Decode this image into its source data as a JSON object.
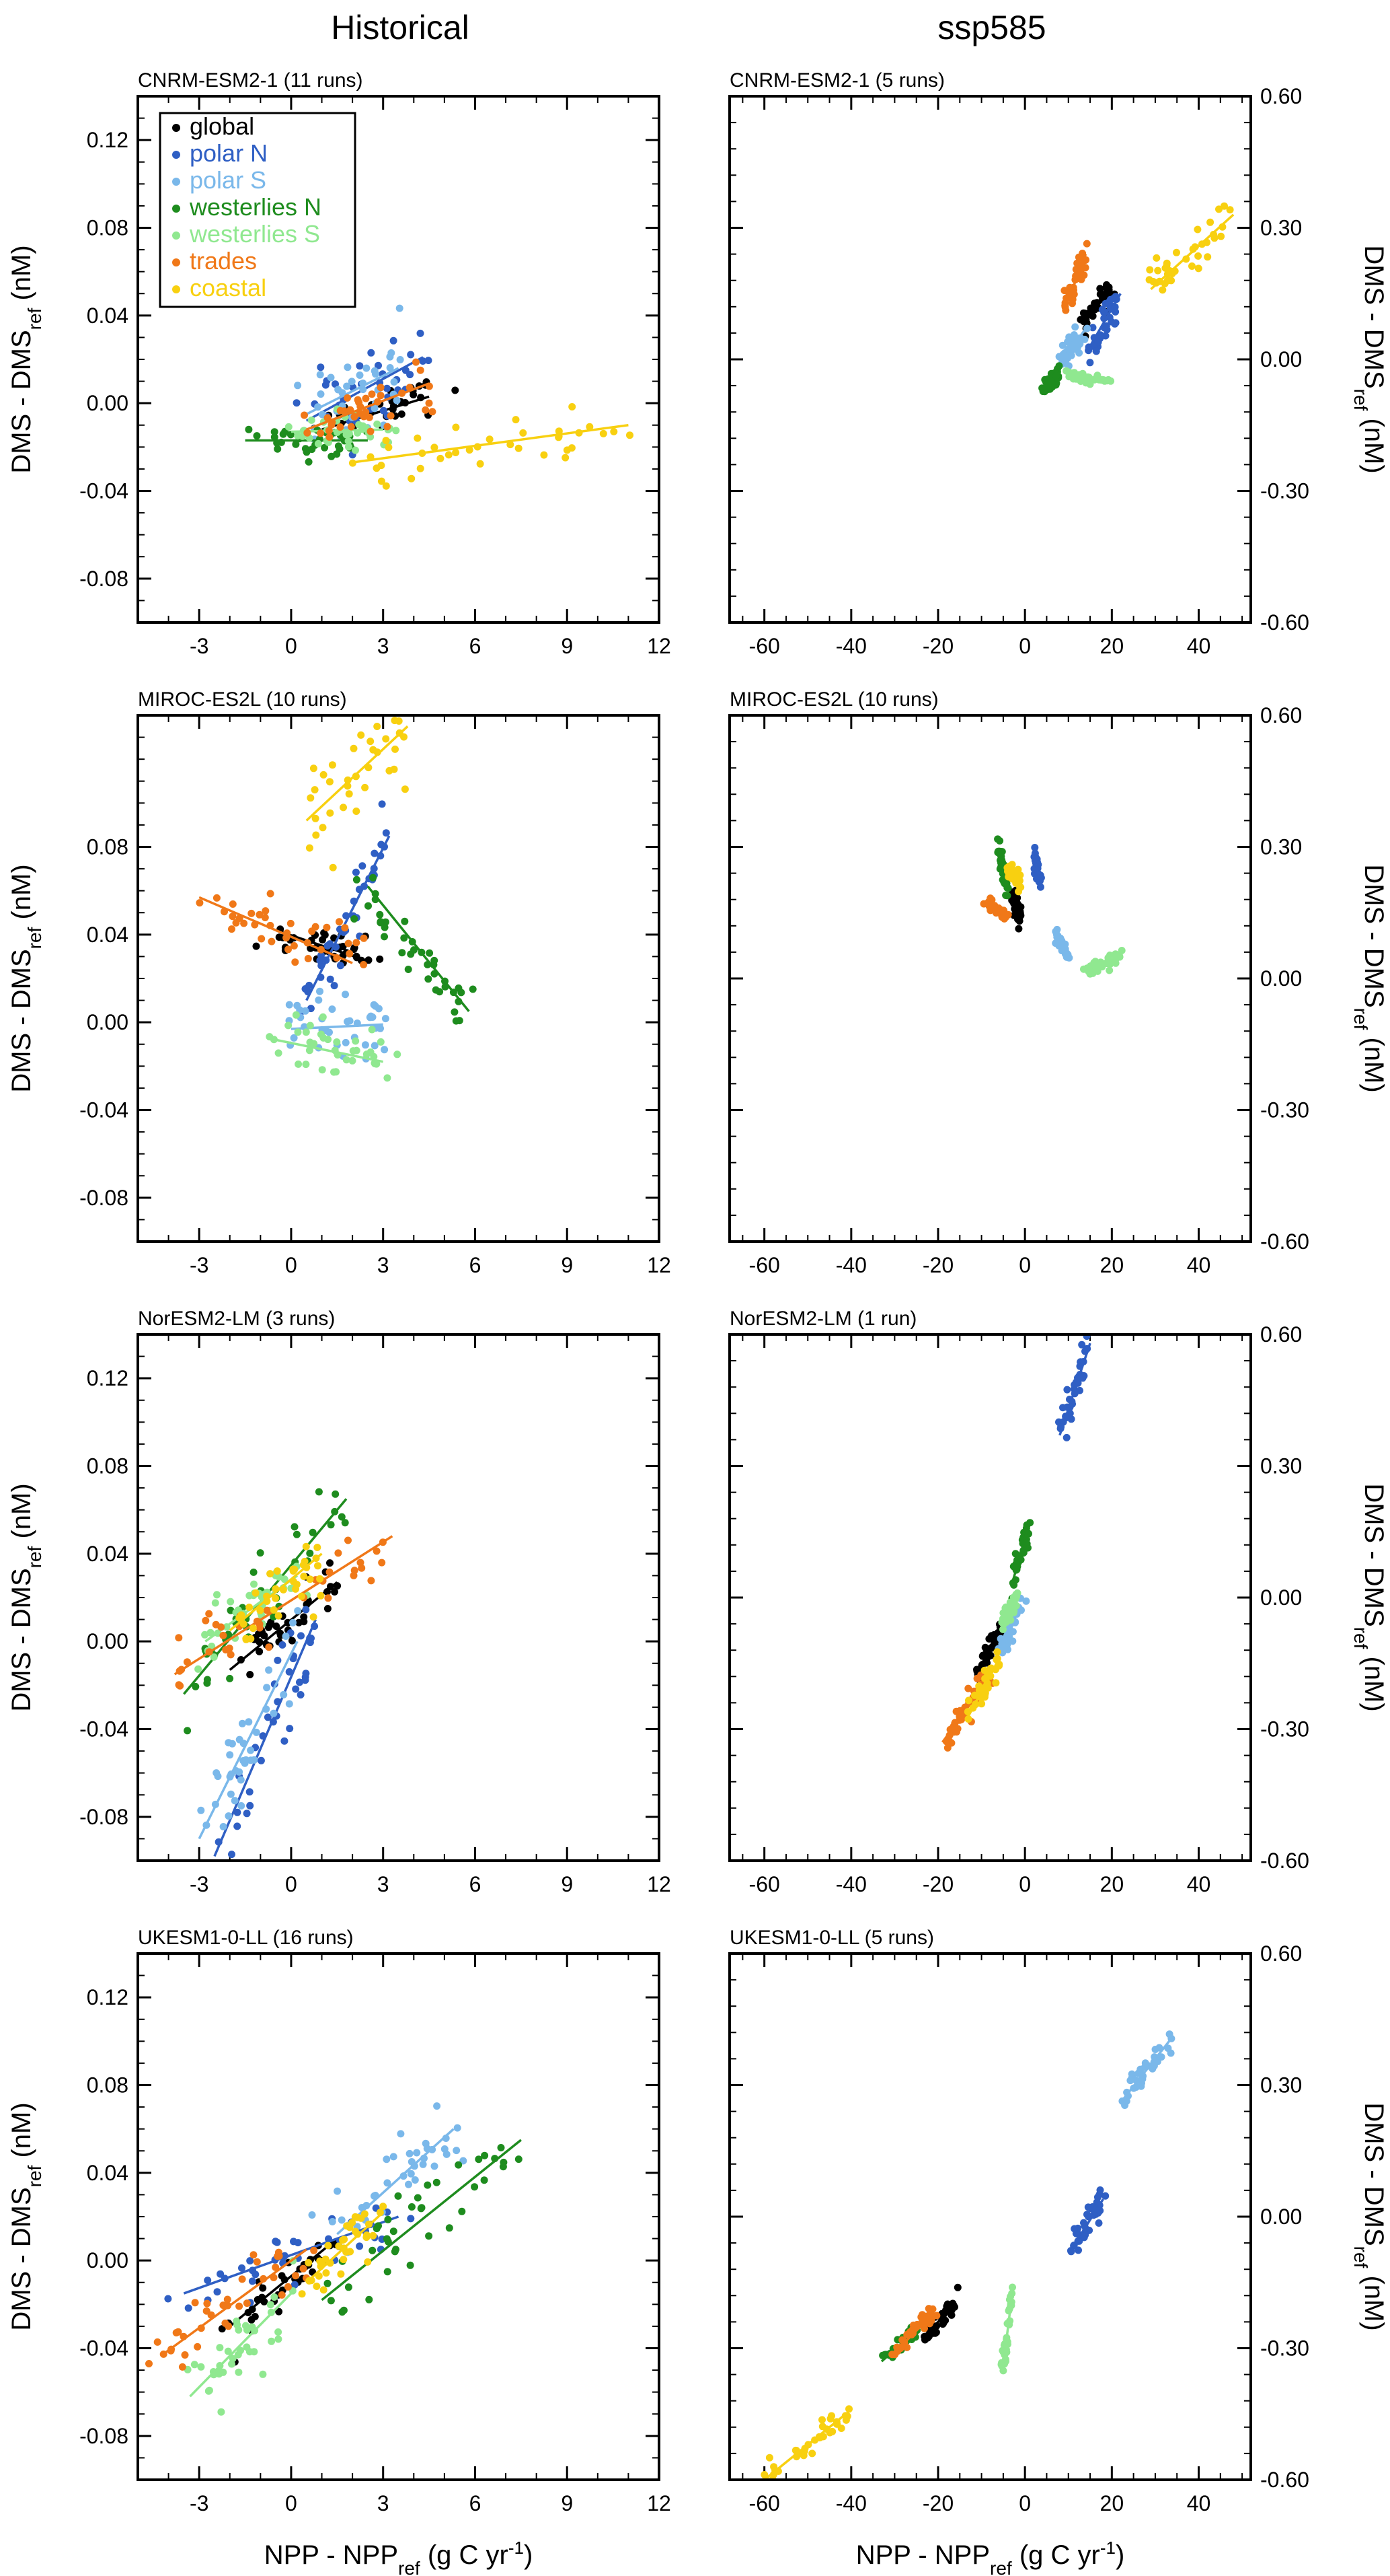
{
  "column_titles": [
    "Historical",
    "ssp585"
  ],
  "axes": {
    "ylabel": {
      "main": "DMS - DMS",
      "sub": "ref",
      "unit": " (nM)"
    },
    "xlabel": {
      "main": "NPP - NPP",
      "sub": "ref",
      "unit": " (g C yr",
      "sup": "-1",
      "close": ")"
    }
  },
  "legend": [
    {
      "key": "global",
      "label": "global"
    },
    {
      "key": "polarN",
      "label": "polar N"
    },
    {
      "key": "polarS",
      "label": "polar S"
    },
    {
      "key": "westN",
      "label": "westerlies N"
    },
    {
      "key": "westS",
      "label": "westerlies S"
    },
    {
      "key": "trades",
      "label": "trades"
    },
    {
      "key": "coastal",
      "label": "coastal"
    }
  ],
  "colors": {
    "global": "#000000",
    "polarN": "#2f5fc4",
    "polarS": "#7ab8ea",
    "westN": "#1e8c1e",
    "westS": "#90e890",
    "trades": "#f07818",
    "coastal": "#f8d010"
  },
  "chart_data": [
    {
      "type": "scatter",
      "title": "CNRM-ESM2-1 (11 runs)",
      "column": "Historical",
      "xlim": [
        -5,
        12
      ],
      "ylim": [
        -0.1,
        0.14
      ],
      "xticks": [
        "-3",
        "0",
        "3",
        "6",
        "9",
        "12"
      ],
      "yticks": [
        "-0.08",
        "-0.04",
        "0.00",
        "0.04",
        "0.08",
        "0.12"
      ],
      "series": [
        {
          "key": "global",
          "x": [
            1,
            4.5
          ],
          "y": [
            -0.012,
            0.003
          ],
          "spread": [
            1.3,
            0.005
          ]
        },
        {
          "key": "polarN",
          "x": [
            0.5,
            4.3
          ],
          "y": [
            -0.008,
            0.021
          ],
          "spread": [
            1.3,
            0.014
          ]
        },
        {
          "key": "polarS",
          "x": [
            0.5,
            3.5
          ],
          "y": [
            -0.005,
            0.016
          ],
          "spread": [
            1.2,
            0.013
          ]
        },
        {
          "key": "westN",
          "x": [
            -1.5,
            2.5
          ],
          "y": [
            -0.017,
            -0.017
          ],
          "spread": [
            1.4,
            0.006
          ]
        },
        {
          "key": "westS",
          "x": [
            0,
            3
          ],
          "y": [
            -0.013,
            -0.012
          ],
          "spread": [
            1.2,
            0.006
          ]
        },
        {
          "key": "trades",
          "x": [
            0.5,
            4.5
          ],
          "y": [
            -0.012,
            0.009
          ],
          "spread": [
            1.3,
            0.008
          ]
        },
        {
          "key": "coastal",
          "x": [
            2,
            11
          ],
          "y": [
            -0.027,
            -0.01
          ],
          "spread": [
            3.0,
            0.008
          ]
        }
      ]
    },
    {
      "type": "scatter",
      "title": "CNRM-ESM2-1 (5 runs)",
      "column": "ssp585",
      "xlim": [
        -68,
        52
      ],
      "ylim": [
        -0.6,
        0.6
      ],
      "xticks": [
        "-60",
        "-40",
        "-20",
        "0",
        "20",
        "40"
      ],
      "yticks": [
        "-0.60",
        "-0.30",
        "0.00",
        "0.30",
        "0.60"
      ],
      "series": [
        {
          "key": "global",
          "x": [
            13,
            20
          ],
          "y": [
            0.08,
            0.16
          ],
          "spread": [
            1.8,
            0.02
          ]
        },
        {
          "key": "polarN",
          "x": [
            15,
            22
          ],
          "y": [
            0.03,
            0.15
          ],
          "spread": [
            2.0,
            0.03
          ]
        },
        {
          "key": "polarS",
          "x": [
            8,
            14
          ],
          "y": [
            -0.01,
            0.07
          ],
          "spread": [
            1.5,
            0.02
          ]
        },
        {
          "key": "westN",
          "x": [
            4,
            8
          ],
          "y": [
            -0.07,
            -0.03
          ],
          "spread": [
            1.0,
            0.015
          ]
        },
        {
          "key": "westS",
          "x": [
            10,
            19
          ],
          "y": [
            -0.04,
            -0.05
          ],
          "spread": [
            2.0,
            0.01
          ]
        },
        {
          "key": "trades",
          "x": [
            9,
            14
          ],
          "y": [
            0.11,
            0.24
          ],
          "spread": [
            1.5,
            0.03
          ]
        },
        {
          "key": "coastal",
          "x": [
            29,
            48
          ],
          "y": [
            0.16,
            0.33
          ],
          "spread": [
            4.0,
            0.03
          ]
        }
      ]
    },
    {
      "type": "scatter",
      "title": "MIROC-ES2L (10 runs)",
      "column": "Historical",
      "xlim": [
        -5,
        12
      ],
      "ylim": [
        -0.1,
        0.14
      ],
      "xticks": [
        "-3",
        "0",
        "3",
        "6",
        "9",
        "12"
      ],
      "yticks": [
        "-0.08",
        "-0.04",
        "0.00",
        "0.04",
        "0.08"
      ],
      "series": [
        {
          "key": "global",
          "x": [
            -0.5,
            2.5
          ],
          "y": [
            0.042,
            0.028
          ],
          "spread": [
            0.8,
            0.006
          ]
        },
        {
          "key": "polarN",
          "x": [
            0.5,
            3.2
          ],
          "y": [
            0.01,
            0.085
          ],
          "spread": [
            0.8,
            0.01
          ]
        },
        {
          "key": "polarS",
          "x": [
            0,
            3
          ],
          "y": [
            -0.003,
            -0.001
          ],
          "spread": [
            1.0,
            0.01
          ]
        },
        {
          "key": "westN",
          "x": [
            2.5,
            5.8
          ],
          "y": [
            0.062,
            0.005
          ],
          "spread": [
            0.9,
            0.01
          ]
        },
        {
          "key": "westS",
          "x": [
            -0.5,
            3
          ],
          "y": [
            -0.008,
            -0.018
          ],
          "spread": [
            1.2,
            0.01
          ]
        },
        {
          "key": "trades",
          "x": [
            -3,
            2
          ],
          "y": [
            0.057,
            0.027
          ],
          "spread": [
            1.3,
            0.008
          ]
        },
        {
          "key": "coastal",
          "x": [
            0.5,
            3.8
          ],
          "y": [
            0.092,
            0.135
          ],
          "spread": [
            0.8,
            0.015
          ]
        }
      ]
    },
    {
      "type": "scatter",
      "title": "MIROC-ES2L (10 runs)",
      "column": "ssp585",
      "xlim": [
        -68,
        52
      ],
      "ylim": [
        -0.6,
        0.6
      ],
      "xticks": [
        "-60",
        "-40",
        "-20",
        "0",
        "20",
        "40"
      ],
      "yticks": [
        "-0.60",
        "-0.30",
        "0.00",
        "0.30",
        "0.60"
      ],
      "series": [
        {
          "key": "global",
          "x": [
            -3,
            -1
          ],
          "y": [
            0.19,
            0.14
          ],
          "spread": [
            0.6,
            0.015
          ]
        },
        {
          "key": "polarN",
          "x": [
            2,
            3.5
          ],
          "y": [
            0.28,
            0.22
          ],
          "spread": [
            0.6,
            0.02
          ]
        },
        {
          "key": "polarS",
          "x": [
            7,
            10
          ],
          "y": [
            0.1,
            0.05
          ],
          "spread": [
            0.7,
            0.015
          ]
        },
        {
          "key": "westN",
          "x": [
            -6,
            -4
          ],
          "y": [
            0.29,
            0.2
          ],
          "spread": [
            0.6,
            0.02
          ]
        },
        {
          "key": "westS",
          "x": [
            14,
            22
          ],
          "y": [
            0.02,
            0.05
          ],
          "spread": [
            1.8,
            0.01
          ]
        },
        {
          "key": "trades",
          "x": [
            -9,
            -4
          ],
          "y": [
            0.18,
            0.14
          ],
          "spread": [
            1.0,
            0.012
          ]
        },
        {
          "key": "coastal",
          "x": [
            -4,
            -1
          ],
          "y": [
            0.25,
            0.22
          ],
          "spread": [
            0.6,
            0.015
          ]
        }
      ]
    },
    {
      "type": "scatter",
      "title": "NorESM2-LM (3 runs)",
      "column": "Historical",
      "xlim": [
        -5,
        12
      ],
      "ylim": [
        -0.1,
        0.14
      ],
      "xticks": [
        "-3",
        "0",
        "3",
        "6",
        "9",
        "12"
      ],
      "yticks": [
        "-0.08",
        "-0.04",
        "0.00",
        "0.04",
        "0.08",
        "0.12"
      ],
      "series": [
        {
          "key": "global",
          "x": [
            -2,
            1.5
          ],
          "y": [
            -0.013,
            0.027
          ],
          "spread": [
            0.7,
            0.008
          ]
        },
        {
          "key": "polarN",
          "x": [
            -2.5,
            0.8
          ],
          "y": [
            -0.098,
            0.01
          ],
          "spread": [
            0.4,
            0.015
          ]
        },
        {
          "key": "polarS",
          "x": [
            -3,
            0.2
          ],
          "y": [
            -0.09,
            0.0
          ],
          "spread": [
            0.5,
            0.015
          ]
        },
        {
          "key": "westN",
          "x": [
            -3.5,
            1.8
          ],
          "y": [
            -0.024,
            0.065
          ],
          "spread": [
            0.9,
            0.012
          ]
        },
        {
          "key": "westS",
          "x": [
            -2.8,
            0.2
          ],
          "y": [
            0.0,
            0.03
          ],
          "spread": [
            0.8,
            0.01
          ]
        },
        {
          "key": "trades",
          "x": [
            -3.8,
            3.3
          ],
          "y": [
            -0.015,
            0.048
          ],
          "spread": [
            1.2,
            0.01
          ]
        },
        {
          "key": "coastal",
          "x": [
            -2,
            1
          ],
          "y": [
            0.005,
            0.04
          ],
          "spread": [
            0.7,
            0.01
          ]
        }
      ]
    },
    {
      "type": "scatter",
      "title": "NorESM2-LM (1 run)",
      "column": "ssp585",
      "xlim": [
        -68,
        52
      ],
      "ylim": [
        -0.6,
        0.6
      ],
      "xticks": [
        "-60",
        "-40",
        "-20",
        "0",
        "20",
        "40"
      ],
      "yticks": [
        "-0.60",
        "-0.30",
        "0.00",
        "0.30",
        "0.60"
      ],
      "series": [
        {
          "key": "global",
          "x": [
            -11,
            -6
          ],
          "y": [
            -0.17,
            -0.08
          ],
          "spread": [
            1.0,
            0.02
          ]
        },
        {
          "key": "polarN",
          "x": [
            8,
            15
          ],
          "y": [
            0.37,
            0.58
          ],
          "spread": [
            1.5,
            0.03
          ]
        },
        {
          "key": "polarS",
          "x": [
            -6,
            -1
          ],
          "y": [
            -0.12,
            -0.02
          ],
          "spread": [
            1.0,
            0.02
          ]
        },
        {
          "key": "westN",
          "x": [
            -3,
            1
          ],
          "y": [
            0.03,
            0.17
          ],
          "spread": [
            0.8,
            0.02
          ]
        },
        {
          "key": "westS",
          "x": [
            -5,
            -2
          ],
          "y": [
            -0.06,
            0.0
          ],
          "spread": [
            0.8,
            0.015
          ]
        },
        {
          "key": "trades",
          "x": [
            -19,
            -8
          ],
          "y": [
            -0.33,
            -0.18
          ],
          "spread": [
            1.8,
            0.025
          ]
        },
        {
          "key": "coastal",
          "x": [
            -13,
            -6
          ],
          "y": [
            -0.27,
            -0.14
          ],
          "spread": [
            1.4,
            0.02
          ]
        }
      ]
    },
    {
      "type": "scatter",
      "title": "UKESM1-0-LL (16 runs)",
      "column": "Historical",
      "xlim": [
        -5,
        12
      ],
      "ylim": [
        -0.1,
        0.14
      ],
      "xticks": [
        "-3",
        "0",
        "3",
        "6",
        "9",
        "12"
      ],
      "yticks": [
        "-0.08",
        "-0.04",
        "0.00",
        "0.04",
        "0.08",
        "0.12"
      ],
      "series": [
        {
          "key": "global",
          "x": [
            -2,
            1.5
          ],
          "y": [
            -0.03,
            0.01
          ],
          "spread": [
            0.6,
            0.008
          ]
        },
        {
          "key": "polarN",
          "x": [
            -3.5,
            3.5
          ],
          "y": [
            -0.015,
            0.02
          ],
          "spread": [
            1.5,
            0.008
          ]
        },
        {
          "key": "polarS",
          "x": [
            1.5,
            5.3
          ],
          "y": [
            0.012,
            0.06
          ],
          "spread": [
            1.0,
            0.01
          ]
        },
        {
          "key": "westN",
          "x": [
            1,
            7.5
          ],
          "y": [
            -0.018,
            0.055
          ],
          "spread": [
            1.6,
            0.01
          ]
        },
        {
          "key": "westS",
          "x": [
            -3.3,
            0
          ],
          "y": [
            -0.062,
            -0.015
          ],
          "spread": [
            0.8,
            0.01
          ]
        },
        {
          "key": "trades",
          "x": [
            -4.2,
            0.5
          ],
          "y": [
            -0.043,
            0.005
          ],
          "spread": [
            1.2,
            0.008
          ]
        },
        {
          "key": "coastal",
          "x": [
            0.5,
            3
          ],
          "y": [
            -0.01,
            0.022
          ],
          "spread": [
            0.7,
            0.008
          ]
        }
      ]
    },
    {
      "type": "scatter",
      "title": "UKESM1-0-LL (5 runs)",
      "column": "ssp585",
      "xlim": [
        -68,
        52
      ],
      "ylim": [
        -0.6,
        0.6
      ],
      "xticks": [
        "-60",
        "-40",
        "-20",
        "0",
        "20",
        "40"
      ],
      "yticks": [
        "-0.60",
        "-0.30",
        "0.00",
        "0.30",
        "0.60"
      ],
      "series": [
        {
          "key": "global",
          "x": [
            -23,
            -16
          ],
          "y": [
            -0.27,
            -0.2
          ],
          "spread": [
            1.6,
            0.015
          ]
        },
        {
          "key": "polarN",
          "x": [
            11,
            18
          ],
          "y": [
            -0.07,
            0.04
          ],
          "spread": [
            1.5,
            0.02
          ]
        },
        {
          "key": "polarS",
          "x": [
            22,
            34
          ],
          "y": [
            0.26,
            0.41
          ],
          "spread": [
            2.2,
            0.02
          ]
        },
        {
          "key": "westN",
          "x": [
            -33,
            -25
          ],
          "y": [
            -0.33,
            -0.26
          ],
          "spread": [
            1.6,
            0.012
          ]
        },
        {
          "key": "westS",
          "x": [
            -5,
            -3
          ],
          "y": [
            -0.34,
            -0.18
          ],
          "spread": [
            0.6,
            0.02
          ]
        },
        {
          "key": "trades",
          "x": [
            -31,
            -21
          ],
          "y": [
            -0.32,
            -0.22
          ],
          "spread": [
            2.0,
            0.015
          ]
        },
        {
          "key": "coastal",
          "x": [
            -60,
            -40
          ],
          "y": [
            -0.6,
            -0.44
          ],
          "spread": [
            3.0,
            0.015
          ]
        }
      ]
    }
  ]
}
